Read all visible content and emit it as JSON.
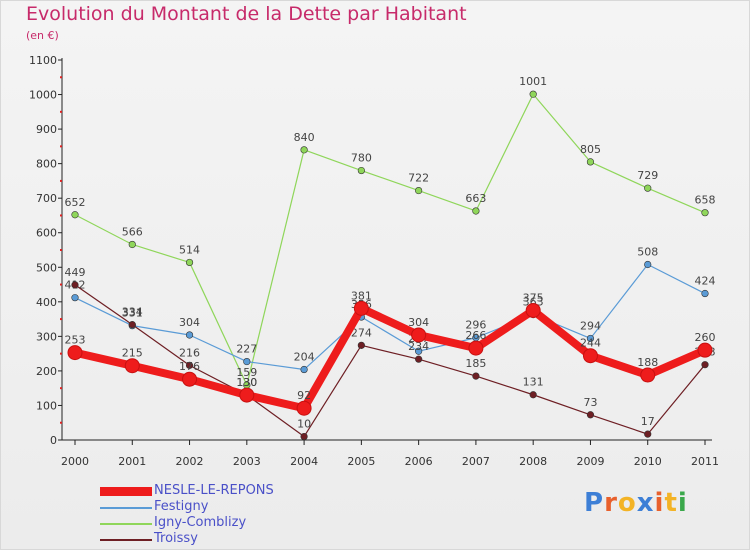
{
  "header": {
    "title": "Evolution du Montant de la Dette par Habitant",
    "subtitle": "(en €)"
  },
  "logo": {
    "text": "Proxiti",
    "letter_colors": [
      "#3d7fd6",
      "#e8602c",
      "#f3b325",
      "#3d7fd6",
      "#e8602c",
      "#f3b325",
      "#3aa84b"
    ]
  },
  "chart_data": {
    "type": "line",
    "title": "Evolution du Montant de la Dette par Habitant",
    "subtitle": "(en €)",
    "xlabel": "",
    "ylabel": "",
    "x": [
      "2000",
      "2001",
      "2002",
      "2003",
      "2004",
      "2005",
      "2006",
      "2007",
      "2008",
      "2009",
      "2010",
      "2011"
    ],
    "ylim": [
      0,
      1100
    ],
    "yticks": [
      0,
      100,
      200,
      300,
      400,
      500,
      600,
      700,
      800,
      900,
      1000,
      1100
    ],
    "grid": false,
    "legend_position": "bottom-left",
    "series": [
      {
        "name": "Igny-Comblizy",
        "color": "#8fd65a",
        "values": [
          652,
          566,
          514,
          159,
          840,
          780,
          722,
          663,
          1001,
          805,
          729,
          658
        ]
      },
      {
        "name": "Festigny",
        "color": "#5a9bd6",
        "values": [
          412,
          331,
          304,
          227,
          204,
          356,
          257,
          296,
          363,
          294,
          508,
          424
        ]
      },
      {
        "name": "Troissy",
        "color": "#6e1f24",
        "values": [
          449,
          334,
          216,
          130,
          10,
          274,
          234,
          185,
          131,
          73,
          17,
          218
        ]
      },
      {
        "name": "NESLE-LE-REPONS",
        "color": "#ee1c1c",
        "values": [
          253,
          215,
          176,
          130,
          92,
          381,
          304,
          266,
          375,
          244,
          188,
          260
        ]
      }
    ]
  }
}
